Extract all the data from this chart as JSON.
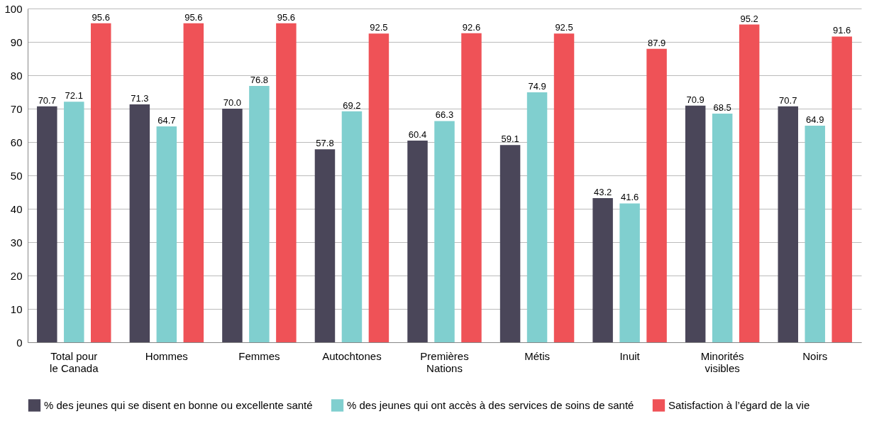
{
  "chart_data": {
    "type": "bar",
    "categories": [
      "Total pour\nle Canada",
      "Hommes",
      "Femmes",
      "Autochtones",
      "Premières\nNations",
      "Métis",
      "Inuit",
      "Minorités\nvisibles",
      "Noirs"
    ],
    "series": [
      {
        "name": "% des jeunes qui se disent en bonne ou excellente santé",
        "color": "#4a4659",
        "values": [
          70.7,
          71.3,
          70.0,
          57.8,
          60.4,
          59.1,
          43.2,
          70.9,
          70.7
        ],
        "value_labels": [
          "70.7",
          "71.3",
          "70.0",
          "57.8",
          "60.4",
          "59.1",
          "43.2",
          "70.9",
          "70.7"
        ]
      },
      {
        "name": "% des jeunes qui ont accès à des services de soins de santé",
        "color": "#80cfcf",
        "values": [
          72.1,
          64.7,
          76.8,
          69.2,
          66.3,
          74.9,
          41.6,
          68.5,
          64.9
        ],
        "value_labels": [
          "72.1",
          "64.7",
          "76.8",
          "69.2",
          "66.3",
          "74.9",
          "41.6",
          "68.5",
          "64.9"
        ]
      },
      {
        "name": "Satisfaction à l’égard de la vie",
        "color": "#ef5257",
        "values": [
          95.6,
          95.6,
          95.6,
          92.5,
          92.6,
          92.5,
          87.9,
          95.2,
          91.6
        ],
        "value_labels": [
          "95.6",
          "95.6",
          "95.6",
          "92.5",
          "92.6",
          "92.5",
          "87.9",
          "95.2",
          "91.6"
        ]
      }
    ],
    "ylim": [
      0,
      100
    ],
    "yticks": [
      0,
      10,
      20,
      30,
      40,
      50,
      60,
      70,
      80,
      90,
      100
    ],
    "grid": "y",
    "legend": "bottom"
  }
}
